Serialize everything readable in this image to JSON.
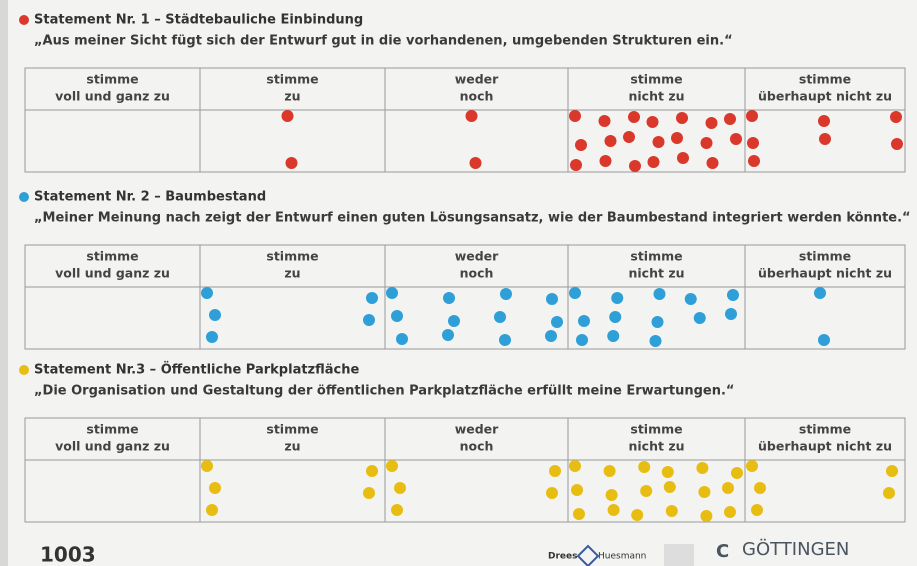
{
  "columns": [
    [
      "stimme",
      "voll und ganz zu"
    ],
    [
      "stimme",
      "zu"
    ],
    [
      "weder",
      "noch"
    ],
    [
      "stimme",
      "nicht zu"
    ],
    [
      "stimme",
      "überhaupt nicht zu"
    ]
  ],
  "statements": [
    {
      "heading": "Statement Nr. 1 – Städtebauliche Einbindung",
      "quote": "„Aus meiner Sicht fügt sich der Entwurf gut in die vorhandenen, umgebenden Strukturen ein.“",
      "color": "#d9382b",
      "values": [
        0,
        2,
        2,
        20,
        7
      ]
    },
    {
      "heading": "Statement Nr. 2 – Baumbestand",
      "quote": "„Meiner Meinung nach zeigt der Entwurf einen guten Lösungsansatz, wie der Baumbestand integriert werden könnte.“",
      "color": "#2f9fd8",
      "values": [
        0,
        5,
        12,
        13,
        2
      ]
    },
    {
      "heading": "Statement Nr.3 – Öffentliche Parkplatzfläche",
      "quote": "„Die Organisation und Gestaltung der öffentlichen Parkplatzfläche erfüllt meine Erwartungen.“",
      "color": "#e8bd12",
      "values": [
        0,
        5,
        5,
        18,
        5
      ]
    }
  ],
  "footer": {
    "number": "1003",
    "logo1a": "Drees",
    "logo1b": "Huesmann",
    "logo2": "GÖTTINGEN"
  }
}
